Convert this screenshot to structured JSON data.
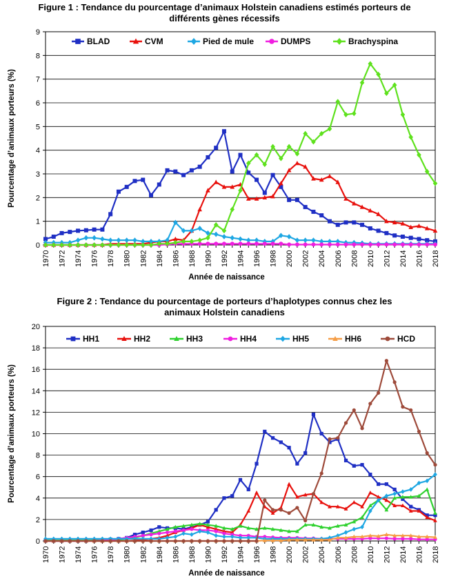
{
  "chart_data": [
    {
      "type": "line",
      "title_lines": [
        "Figure 1 : Tendance du pourcentage d’animaux Holstein canadiens estimés porteurs de",
        "différents gènes récessifs"
      ],
      "xlabel": "Année de naissance",
      "ylabel": "Pourcentage d’animaux porteurs (%)",
      "ylim": [
        0,
        9
      ],
      "yticks": [
        "0",
        "1",
        "2",
        "3",
        "4",
        "5",
        "6",
        "7",
        "8",
        "9"
      ],
      "x": [
        1970,
        1971,
        1972,
        1973,
        1974,
        1975,
        1976,
        1977,
        1978,
        1979,
        1980,
        1981,
        1982,
        1983,
        1984,
        1985,
        1986,
        1987,
        1988,
        1989,
        1990,
        1991,
        1992,
        1993,
        1994,
        1995,
        1996,
        1997,
        1998,
        1999,
        2000,
        2001,
        2002,
        2003,
        2004,
        2005,
        2006,
        2007,
        2008,
        2009,
        2010,
        2011,
        2012,
        2013,
        2014,
        2015,
        2016,
        2017,
        2018
      ],
      "xtick_labels": [
        "1970",
        "1972",
        "1974",
        "1976",
        "1978",
        "1980",
        "1982",
        "1984",
        "1986",
        "1988",
        "1990",
        "1992",
        "1994",
        "1996",
        "1998",
        "2000",
        "2002",
        "2004",
        "2006",
        "2008",
        "2010",
        "2012",
        "2014",
        "2016",
        "2018"
      ],
      "grid": true,
      "legend": "top",
      "series": [
        {
          "name": "BLAD",
          "color": "#1f2fc4",
          "marker": "square",
          "values": [
            0.25,
            0.35,
            0.5,
            0.55,
            0.6,
            0.62,
            0.65,
            0.65,
            1.3,
            2.25,
            2.45,
            2.7,
            2.75,
            2.1,
            2.55,
            3.15,
            3.1,
            2.95,
            3.15,
            3.3,
            3.7,
            4.1,
            4.8,
            3.1,
            3.8,
            3.05,
            2.75,
            2.2,
            2.95,
            2.45,
            1.9,
            1.9,
            1.6,
            1.4,
            1.25,
            1.0,
            0.85,
            0.95,
            0.95,
            0.85,
            0.7,
            0.6,
            0.5,
            0.4,
            0.35,
            0.3,
            0.25,
            0.2,
            0.15
          ]
        },
        {
          "name": "CVM",
          "color": "#e8100c",
          "marker": "triangle",
          "values": [
            0.0,
            0.0,
            0.0,
            0.0,
            0.0,
            0.0,
            0.0,
            0.0,
            0.05,
            0.05,
            0.05,
            0.05,
            0.05,
            0.1,
            0.15,
            0.15,
            0.25,
            0.2,
            0.6,
            1.5,
            2.3,
            2.65,
            2.45,
            2.45,
            2.55,
            1.95,
            1.95,
            2.0,
            2.05,
            2.6,
            3.15,
            3.45,
            3.3,
            2.8,
            2.75,
            2.9,
            2.65,
            1.95,
            1.75,
            1.6,
            1.45,
            1.3,
            1.0,
            0.95,
            0.9,
            0.75,
            0.8,
            0.7,
            0.6
          ]
        },
        {
          "name": "Pied de mule",
          "color": "#1ea7e3",
          "marker": "diamond",
          "values": [
            0.1,
            0.1,
            0.1,
            0.1,
            0.2,
            0.3,
            0.3,
            0.25,
            0.2,
            0.2,
            0.2,
            0.2,
            0.15,
            0.15,
            0.15,
            0.2,
            0.95,
            0.6,
            0.6,
            0.7,
            0.5,
            0.45,
            0.35,
            0.3,
            0.25,
            0.2,
            0.2,
            0.15,
            0.15,
            0.4,
            0.35,
            0.2,
            0.2,
            0.2,
            0.15,
            0.15,
            0.15,
            0.1,
            0.1,
            0.08,
            0.05,
            0.05,
            0.05,
            0.05,
            0.05,
            0.05,
            0.05,
            0.05,
            0.05
          ]
        },
        {
          "name": "DUMPS",
          "color": "#f01ee0",
          "marker": "circle",
          "values": [
            0.0,
            0.0,
            0.0,
            0.0,
            0.0,
            0.0,
            0.0,
            0.0,
            0.0,
            0.0,
            0.0,
            0.0,
            0.0,
            0.0,
            0.0,
            0.02,
            0.05,
            0.05,
            0.05,
            0.05,
            0.05,
            0.05,
            0.05,
            0.05,
            0.05,
            0.05,
            0.05,
            0.05,
            0.05,
            0.05,
            0.02,
            0.02,
            0.02,
            0.02,
            0.02,
            0.02,
            0.02,
            0.02,
            0.02,
            0.02,
            0.02,
            0.02,
            0.02,
            0.02,
            0.02,
            0.02,
            0.02,
            0.02,
            0.02
          ]
        },
        {
          "name": "Brachyspina",
          "color": "#5ee11d",
          "marker": "diamond",
          "values": [
            0.0,
            0.0,
            0.0,
            0.0,
            0.0,
            0.0,
            0.0,
            0.0,
            0.0,
            0.0,
            0.0,
            0.0,
            0.0,
            0.0,
            0.05,
            0.05,
            0.1,
            0.15,
            0.15,
            0.2,
            0.3,
            0.85,
            0.6,
            1.5,
            2.3,
            3.45,
            3.8,
            3.4,
            4.15,
            3.65,
            4.15,
            3.85,
            4.7,
            4.35,
            4.7,
            4.9,
            6.05,
            5.5,
            5.55,
            6.85,
            7.65,
            7.2,
            6.4,
            6.75,
            5.5,
            4.55,
            3.8,
            3.1,
            2.6
          ]
        }
      ]
    },
    {
      "type": "line",
      "title_lines": [
        "Figure 2 : Tendance du pourcentage de porteurs d’haplotypes connus chez les",
        "animaux Holstein canadiens"
      ],
      "xlabel": "Année de naissance",
      "ylabel": "Pourcentage d’animaux porteurs (%)",
      "ylim": [
        0,
        20
      ],
      "yticks": [
        "0",
        "2",
        "4",
        "6",
        "8",
        "10",
        "12",
        "14",
        "16",
        "18",
        "20"
      ],
      "x": [
        1970,
        1971,
        1972,
        1973,
        1974,
        1975,
        1976,
        1977,
        1978,
        1979,
        1980,
        1981,
        1982,
        1983,
        1984,
        1985,
        1986,
        1987,
        1988,
        1989,
        1990,
        1991,
        1992,
        1993,
        1994,
        1995,
        1996,
        1997,
        1998,
        1999,
        2000,
        2001,
        2002,
        2003,
        2004,
        2005,
        2006,
        2007,
        2008,
        2009,
        2010,
        2011,
        2012,
        2013,
        2014,
        2015,
        2016,
        2017,
        2018
      ],
      "xtick_labels": [
        "1970",
        "1972",
        "1974",
        "1976",
        "1978",
        "1980",
        "1982",
        "1984",
        "1986",
        "1988",
        "1990",
        "1992",
        "1994",
        "1996",
        "1998",
        "2000",
        "2002",
        "2004",
        "2006",
        "2008",
        "2010",
        "2012",
        "2014",
        "2016",
        "2018"
      ],
      "grid": true,
      "legend": "top",
      "series": [
        {
          "name": "HH1",
          "color": "#1f2fc4",
          "marker": "square",
          "values": [
            0.0,
            0.0,
            0.0,
            0.0,
            0.0,
            0.0,
            0.05,
            0.1,
            0.15,
            0.2,
            0.3,
            0.6,
            0.8,
            1.0,
            1.3,
            1.2,
            1.2,
            1.1,
            1.3,
            1.5,
            1.8,
            2.9,
            4.0,
            4.2,
            5.7,
            4.8,
            7.2,
            10.2,
            9.6,
            9.2,
            8.7,
            7.2,
            8.2,
            11.8,
            10.0,
            9.2,
            9.5,
            7.5,
            7.0,
            7.1,
            6.2,
            5.3,
            5.3,
            4.8,
            3.9,
            3.2,
            2.9,
            2.4,
            2.4
          ]
        },
        {
          "name": "HH2",
          "color": "#e8100c",
          "marker": "triangle",
          "values": [
            0.0,
            0.0,
            0.0,
            0.0,
            0.0,
            0.0,
            0.0,
            0.0,
            0.0,
            0.0,
            0.0,
            0.05,
            0.1,
            0.2,
            0.3,
            0.5,
            0.8,
            1.0,
            1.2,
            1.5,
            1.3,
            1.1,
            0.9,
            0.8,
            1.5,
            2.8,
            4.5,
            3.2,
            2.6,
            3.1,
            5.3,
            4.1,
            4.3,
            4.4,
            3.6,
            3.2,
            3.2,
            3.0,
            3.6,
            3.2,
            4.5,
            4.1,
            3.8,
            3.3,
            3.3,
            2.8,
            2.8,
            2.2,
            1.9
          ]
        },
        {
          "name": "HH3",
          "color": "#2fd12f",
          "marker": "triangle",
          "values": [
            0.05,
            0.05,
            0.05,
            0.05,
            0.05,
            0.05,
            0.05,
            0.05,
            0.1,
            0.1,
            0.2,
            0.3,
            0.5,
            0.7,
            0.9,
            1.1,
            1.3,
            1.4,
            1.5,
            1.6,
            1.5,
            1.4,
            1.2,
            1.1,
            1.4,
            1.2,
            1.1,
            1.2,
            1.1,
            1.0,
            0.9,
            0.9,
            1.5,
            1.5,
            1.3,
            1.2,
            1.4,
            1.5,
            1.8,
            2.2,
            3.3,
            3.8,
            2.9,
            4.0,
            4.1,
            4.1,
            4.2,
            4.8,
            2.6
          ]
        },
        {
          "name": "HH4",
          "color": "#f01ee0",
          "marker": "circle",
          "values": [
            0.0,
            0.0,
            0.0,
            0.0,
            0.0,
            0.0,
            0.0,
            0.05,
            0.1,
            0.2,
            0.3,
            0.4,
            0.5,
            0.6,
            0.7,
            0.8,
            0.9,
            1.0,
            1.1,
            1.0,
            1.0,
            0.9,
            0.7,
            0.6,
            0.5,
            0.5,
            0.4,
            0.4,
            0.35,
            0.3,
            0.3,
            0.3,
            0.25,
            0.25,
            0.2,
            0.2,
            0.2,
            0.2,
            0.2,
            0.2,
            0.25,
            0.25,
            0.25,
            0.2,
            0.2,
            0.2,
            0.15,
            0.15,
            0.15
          ]
        },
        {
          "name": "HH5",
          "color": "#1ea7e3",
          "marker": "diamond",
          "values": [
            0.2,
            0.2,
            0.2,
            0.2,
            0.2,
            0.2,
            0.2,
            0.2,
            0.2,
            0.2,
            0.2,
            0.2,
            0.2,
            0.2,
            0.2,
            0.3,
            0.4,
            0.7,
            0.6,
            0.9,
            0.8,
            0.5,
            0.4,
            0.4,
            0.3,
            0.3,
            0.3,
            0.2,
            0.2,
            0.2,
            0.2,
            0.2,
            0.2,
            0.2,
            0.2,
            0.3,
            0.5,
            0.8,
            1.1,
            1.3,
            2.8,
            3.8,
            4.2,
            4.4,
            4.6,
            4.8,
            5.4,
            5.6,
            6.2
          ]
        },
        {
          "name": "HH6",
          "color": "#f59d45",
          "marker": "triangle",
          "values": [
            0.0,
            0.0,
            0.0,
            0.0,
            0.0,
            0.0,
            0.0,
            0.0,
            0.0,
            0.0,
            0.0,
            0.0,
            0.0,
            0.0,
            0.0,
            0.0,
            0.0,
            0.0,
            0.0,
            0.0,
            0.0,
            0.0,
            0.0,
            0.0,
            0.0,
            0.0,
            0.0,
            0.05,
            0.05,
            0.05,
            0.1,
            0.1,
            0.1,
            0.1,
            0.1,
            0.1,
            0.3,
            0.3,
            0.4,
            0.4,
            0.5,
            0.45,
            0.6,
            0.5,
            0.5,
            0.5,
            0.4,
            0.4,
            0.35
          ]
        },
        {
          "name": "HCD",
          "color": "#9e4a3a",
          "marker": "circle",
          "values": [
            0.0,
            0.0,
            0.0,
            0.0,
            0.0,
            0.0,
            0.0,
            0.0,
            0.0,
            0.0,
            0.0,
            0.0,
            0.0,
            0.0,
            0.0,
            0.0,
            0.0,
            0.0,
            0.0,
            0.0,
            0.0,
            0.0,
            0.0,
            0.0,
            0.0,
            0.0,
            0.0,
            3.8,
            2.9,
            2.9,
            2.6,
            3.1,
            1.9,
            4.4,
            6.3,
            9.5,
            9.6,
            11.0,
            12.2,
            10.5,
            12.8,
            13.8,
            16.8,
            14.8,
            12.5,
            12.2,
            10.2,
            8.2,
            7.1
          ]
        }
      ]
    }
  ]
}
